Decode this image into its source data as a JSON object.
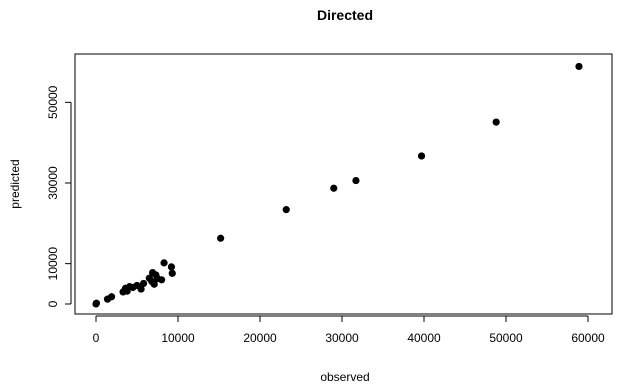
{
  "chart_data": {
    "type": "scatter",
    "title": "Directed",
    "xlabel": "observed",
    "ylabel": "predicted",
    "xlim": [
      0,
      60000
    ],
    "ylim": [
      0,
      60000
    ],
    "xticks": [
      0,
      10000,
      20000,
      30000,
      40000,
      50000,
      60000
    ],
    "yticks": [
      0,
      10000,
      30000,
      50000
    ],
    "xtick_labels": [
      "0",
      "10000",
      "20000",
      "30000",
      "40000",
      "50000",
      "60000"
    ],
    "ytick_labels": [
      "0",
      "10000",
      "30000",
      "50000"
    ],
    "grid": false,
    "point_color": "#000000",
    "points": [
      {
        "x": 0,
        "y": 0
      },
      {
        "x": 50,
        "y": 200
      },
      {
        "x": 1400,
        "y": 1200
      },
      {
        "x": 1900,
        "y": 1800
      },
      {
        "x": 3300,
        "y": 3000
      },
      {
        "x": 3600,
        "y": 3900
      },
      {
        "x": 3800,
        "y": 3200
      },
      {
        "x": 4100,
        "y": 4300
      },
      {
        "x": 4500,
        "y": 4100
      },
      {
        "x": 5000,
        "y": 4600
      },
      {
        "x": 5500,
        "y": 3700
      },
      {
        "x": 5800,
        "y": 5100
      },
      {
        "x": 6500,
        "y": 6400
      },
      {
        "x": 6800,
        "y": 5600
      },
      {
        "x": 6900,
        "y": 7800
      },
      {
        "x": 7100,
        "y": 4900
      },
      {
        "x": 7300,
        "y": 7200
      },
      {
        "x": 7500,
        "y": 6300
      },
      {
        "x": 8000,
        "y": 6000
      },
      {
        "x": 8300,
        "y": 10200
      },
      {
        "x": 9200,
        "y": 9200
      },
      {
        "x": 9300,
        "y": 7600
      },
      {
        "x": 15200,
        "y": 16300
      },
      {
        "x": 23200,
        "y": 23400
      },
      {
        "x": 29000,
        "y": 28700
      },
      {
        "x": 31700,
        "y": 30600
      },
      {
        "x": 39700,
        "y": 36700
      },
      {
        "x": 48800,
        "y": 45100
      },
      {
        "x": 58900,
        "y": 58900
      }
    ]
  }
}
